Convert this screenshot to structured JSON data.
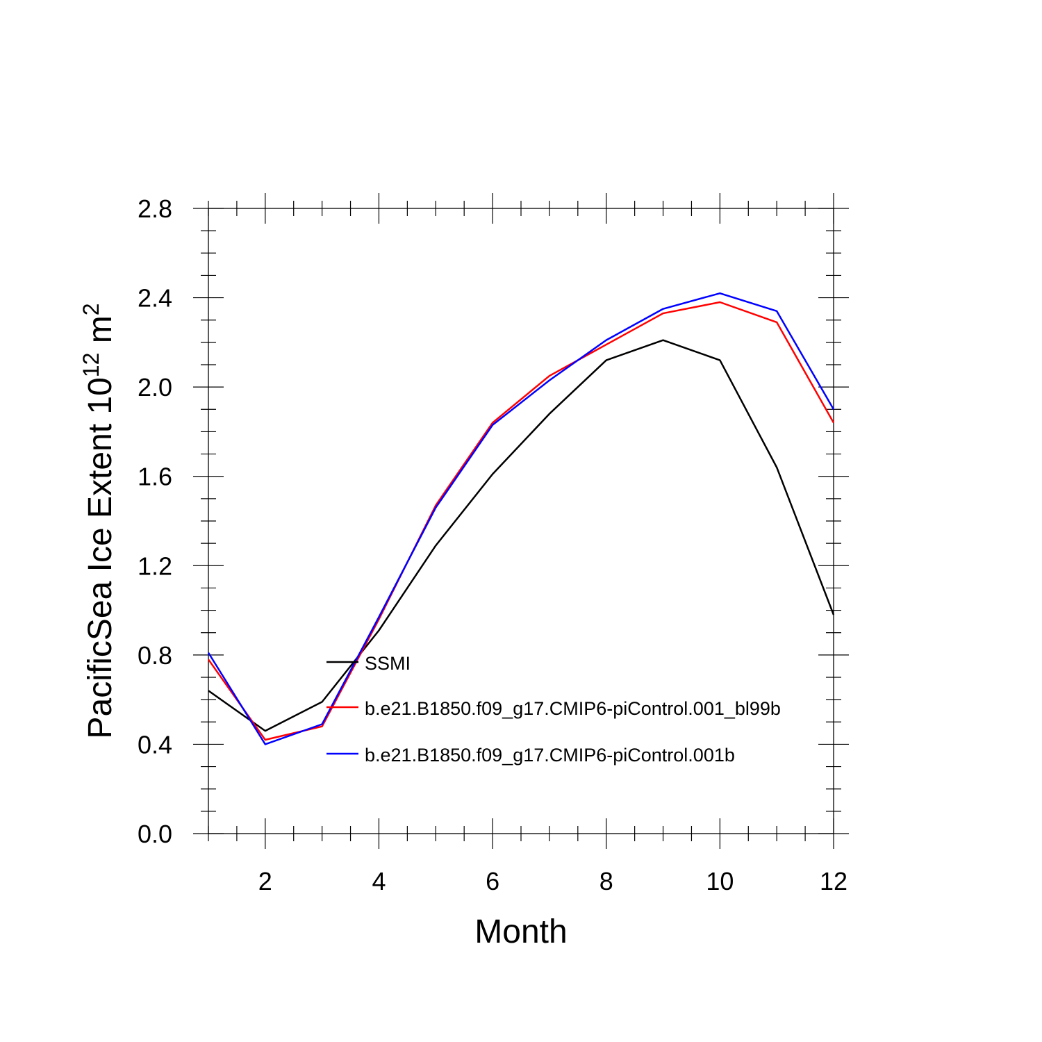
{
  "chart_data": {
    "type": "line",
    "xlabel": "Month",
    "ylabel_prefix": "PacificSea Ice Extent 10",
    "ylabel_exp": "12",
    "ylabel_unit": " m",
    "ylabel_unit_exp": "2",
    "xlim": [
      1,
      12
    ],
    "ylim": [
      0.0,
      2.8
    ],
    "x_ticks": [
      2,
      4,
      6,
      8,
      10,
      12
    ],
    "x_tick_labels": [
      "2",
      "4",
      "6",
      "8",
      "10",
      "12"
    ],
    "y_ticks": [
      0.0,
      0.4,
      0.8,
      1.2,
      1.6,
      2.0,
      2.4,
      2.8
    ],
    "y_tick_labels": [
      "0.0",
      "0.4",
      "0.8",
      "1.2",
      "1.6",
      "2.0",
      "2.4",
      "2.8"
    ],
    "legend_position": "center",
    "x": [
      1,
      2,
      3,
      4,
      5,
      6,
      7,
      8,
      9,
      10,
      11,
      12
    ],
    "series": [
      {
        "name": "SSMI",
        "color": "#000000",
        "values": [
          0.64,
          0.46,
          0.59,
          0.91,
          1.29,
          1.61,
          1.88,
          2.12,
          2.21,
          2.12,
          1.64,
          0.98
        ]
      },
      {
        "name": "b.e21.B1850.f09_g17.CMIP6-piControl.001_bl99b",
        "color": "#ff0000",
        "values": [
          0.78,
          0.42,
          0.48,
          0.96,
          1.47,
          1.84,
          2.05,
          2.19,
          2.33,
          2.38,
          2.29,
          1.84
        ]
      },
      {
        "name": "b.e21.B1850.f09_g17.CMIP6-piControl.001b",
        "color": "#0000ff",
        "values": [
          0.81,
          0.4,
          0.49,
          0.97,
          1.46,
          1.83,
          2.03,
          2.21,
          2.35,
          2.42,
          2.34,
          1.9
        ]
      }
    ]
  }
}
